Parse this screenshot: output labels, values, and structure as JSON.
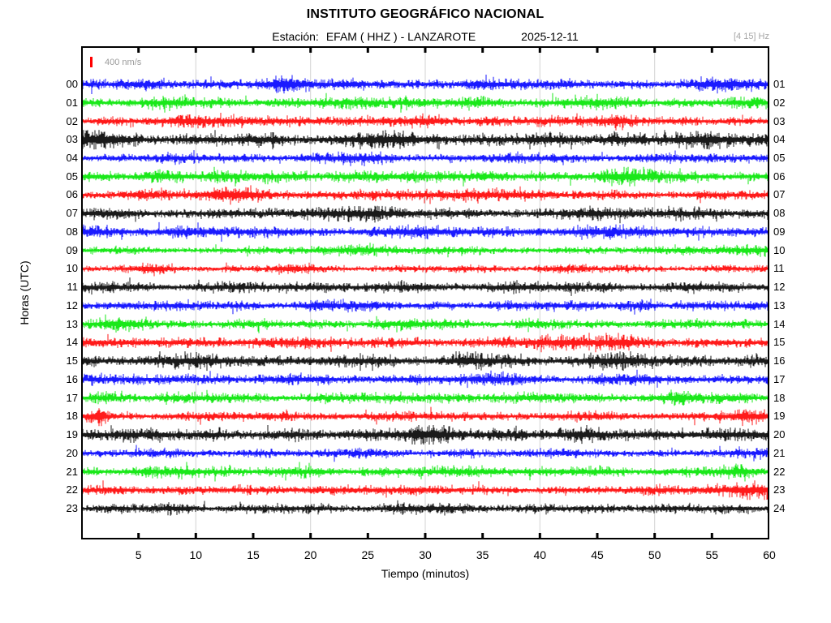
{
  "header": {
    "title": "INSTITUTO GEOGRÁFICO NACIONAL",
    "station_label": "Estación:",
    "station": "EFAM ( HHZ ) - LANZAROTE",
    "date": "2025-12-11",
    "filter_band": "[4 15] Hz"
  },
  "scale_bar": {
    "label": "400 nm/s"
  },
  "axes": {
    "xlabel": "Tiempo (minutos)",
    "ylabel": "Horas (UTC)",
    "x_tick_minutes": [
      5,
      10,
      15,
      20,
      25,
      30,
      35,
      40,
      45,
      50,
      55,
      60
    ],
    "tick_step_minutes": 5,
    "gridline_minutes": [
      10,
      20,
      30,
      40,
      50
    ],
    "xlim": [
      0,
      60
    ]
  },
  "chart_data": {
    "type": "line",
    "subtype": "helicorder-seismogram",
    "title": "INSTITUTO GEOGRÁFICO NACIONAL",
    "station": "EFAM ( HHZ ) - LANZAROTE",
    "date": "2025-12-11",
    "filter_band_hz": "[4 15] Hz",
    "amplitude_scale": "400 nm/s",
    "xlabel": "Tiempo (minutos)",
    "ylabel": "Horas (UTC)",
    "xlim": [
      0,
      60
    ],
    "x_tick_labels": [
      5,
      10,
      15,
      20,
      25,
      30,
      35,
      40,
      45,
      50,
      55,
      60
    ],
    "gridlines_at_minutes": [
      10,
      20,
      30,
      40,
      50
    ],
    "grid_color": "#d3d3d3",
    "color_cycle": [
      "#0000ff",
      "#00e600",
      "#ff0000",
      "#000000"
    ],
    "bursts_format": "[minute, width_minutes, relative_amplitude]",
    "rows": [
      {
        "hour_utc": "00",
        "right_label": "01",
        "color": "#0000ff",
        "base_amplitude": 5.5,
        "bursts": [
          [
            17,
            2,
            1.8
          ],
          [
            34,
            1.5,
            1.35
          ],
          [
            56,
            1.5,
            1.5
          ]
        ]
      },
      {
        "hour_utc": "01",
        "right_label": "02",
        "color": "#00e600",
        "base_amplitude": 5.5,
        "bursts": [
          [
            8,
            1,
            1.35
          ],
          [
            27,
            2,
            1.6
          ],
          [
            44,
            1.5,
            1.5
          ]
        ]
      },
      {
        "hour_utc": "02",
        "right_label": "03",
        "color": "#ff0000",
        "base_amplitude": 5.5,
        "bursts": [
          [
            10,
            1.5,
            1.55
          ],
          [
            29,
            2,
            1.75
          ],
          [
            47,
            1,
            1.3
          ]
        ]
      },
      {
        "hour_utc": "03",
        "right_label": "04",
        "color": "#000000",
        "base_amplitude": 7.0,
        "bursts": [
          [
            1,
            1.5,
            1.7
          ],
          [
            26,
            2,
            1.45
          ],
          [
            47,
            1.5,
            1.35
          ],
          [
            56,
            2,
            1.45
          ]
        ]
      },
      {
        "hour_utc": "04",
        "right_label": "05",
        "color": "#0000ff",
        "base_amplitude": 5.0,
        "bursts": [
          [
            24,
            1.5,
            1.5
          ],
          [
            42,
            1,
            1.3
          ],
          [
            59,
            1,
            1.5
          ]
        ]
      },
      {
        "hour_utc": "05",
        "right_label": "06",
        "color": "#00e600",
        "base_amplitude": 6.0,
        "bursts": [
          [
            8,
            1.5,
            1.45
          ],
          [
            25,
            2,
            1.45
          ],
          [
            48,
            2,
            1.5
          ]
        ]
      },
      {
        "hour_utc": "06",
        "right_label": "07",
        "color": "#ff0000",
        "base_amplitude": 5.5,
        "bursts": [
          [
            14,
            1.5,
            1.55
          ],
          [
            26,
            1.5,
            1.6
          ],
          [
            34,
            1.5,
            1.45
          ]
        ]
      },
      {
        "hour_utc": "07",
        "right_label": "08",
        "color": "#000000",
        "base_amplitude": 6.0,
        "bursts": [
          [
            26,
            2,
            1.4
          ],
          [
            45,
            1.5,
            1.3
          ]
        ]
      },
      {
        "hour_utc": "08",
        "right_label": "09",
        "color": "#0000ff",
        "base_amplitude": 6.0,
        "bursts": [
          [
            2,
            1.5,
            1.5
          ],
          [
            30,
            1.5,
            1.3
          ],
          [
            44,
            1.5,
            1.45
          ]
        ]
      },
      {
        "hour_utc": "09",
        "right_label": "10",
        "color": "#00e600",
        "base_amplitude": 4.5,
        "bursts": [
          [
            25,
            1.5,
            1.4
          ],
          [
            58,
            1.5,
            1.5
          ]
        ]
      },
      {
        "hour_utc": "10",
        "right_label": "11",
        "color": "#ff0000",
        "base_amplitude": 4.0,
        "bursts": [
          [
            6,
            1,
            1.6
          ],
          [
            18,
            1.5,
            1.5
          ],
          [
            42,
            1.5,
            1.4
          ]
        ]
      },
      {
        "hour_utc": "11",
        "right_label": "12",
        "color": "#000000",
        "base_amplitude": 5.5,
        "bursts": [
          [
            20,
            2,
            1.3
          ],
          [
            37,
            1.5,
            1.3
          ]
        ]
      },
      {
        "hour_utc": "12",
        "right_label": "13",
        "color": "#0000ff",
        "base_amplitude": 5.0,
        "bursts": [
          [
            22,
            1.5,
            1.4
          ],
          [
            48,
            1.5,
            1.4
          ]
        ]
      },
      {
        "hour_utc": "13",
        "right_label": "14",
        "color": "#00e600",
        "base_amplitude": 5.0,
        "bursts": [
          [
            4,
            1.5,
            1.5
          ],
          [
            30,
            2,
            1.4
          ]
        ]
      },
      {
        "hour_utc": "14",
        "right_label": "15",
        "color": "#ff0000",
        "base_amplitude": 6.0,
        "bursts": [
          [
            5,
            1.5,
            1.5
          ],
          [
            42,
            1.5,
            1.5
          ],
          [
            47,
            1,
            1.4
          ]
        ]
      },
      {
        "hour_utc": "15",
        "right_label": "16",
        "color": "#000000",
        "base_amplitude": 6.5,
        "bursts": [
          [
            10,
            1.5,
            1.45
          ],
          [
            33,
            1.5,
            1.4
          ],
          [
            47,
            2,
            1.5
          ]
        ]
      },
      {
        "hour_utc": "16",
        "right_label": "17",
        "color": "#0000ff",
        "base_amplitude": 5.5,
        "bursts": [
          [
            12,
            1.5,
            1.3
          ],
          [
            36,
            1.5,
            1.3
          ]
        ]
      },
      {
        "hour_utc": "17",
        "right_label": "18",
        "color": "#00e600",
        "base_amplitude": 5.5,
        "bursts": [
          [
            2,
            1,
            1.5
          ],
          [
            30,
            1.5,
            1.3
          ],
          [
            52,
            1.5,
            1.5
          ]
        ]
      },
      {
        "hour_utc": "18",
        "right_label": "19",
        "color": "#ff0000",
        "base_amplitude": 5.0,
        "bursts": [
          [
            1.5,
            0.3,
            2.6
          ],
          [
            23,
            1.5,
            1.3
          ],
          [
            58,
            1.5,
            1.7
          ]
        ]
      },
      {
        "hour_utc": "19",
        "right_label": "20",
        "color": "#000000",
        "base_amplitude": 6.5,
        "bursts": [
          [
            18,
            1.5,
            1.3
          ],
          [
            30,
            1.5,
            1.55
          ],
          [
            44,
            2.5,
            1.65
          ]
        ]
      },
      {
        "hour_utc": "20",
        "right_label": "21",
        "color": "#0000ff",
        "base_amplitude": 4.5,
        "bursts": [
          [
            15,
            1.5,
            1.25
          ],
          [
            33,
            1.5,
            1.25
          ]
        ]
      },
      {
        "hour_utc": "21",
        "right_label": "22",
        "color": "#00e600",
        "base_amplitude": 5.5,
        "bursts": [
          [
            10,
            1.5,
            1.4
          ],
          [
            35,
            1.5,
            1.4
          ],
          [
            57,
            1,
            1.3
          ]
        ]
      },
      {
        "hour_utc": "22",
        "right_label": "23",
        "color": "#ff0000",
        "base_amplitude": 5.0,
        "bursts": [
          [
            13,
            1.5,
            1.4
          ],
          [
            59,
            1.5,
            2.2
          ]
        ]
      },
      {
        "hour_utc": "23",
        "right_label": "24",
        "color": "#000000",
        "base_amplitude": 5.0,
        "bursts": [
          [
            8,
            1.5,
            1.2
          ],
          [
            30,
            2,
            1.3
          ],
          [
            50,
            1.5,
            1.2
          ]
        ]
      }
    ]
  }
}
